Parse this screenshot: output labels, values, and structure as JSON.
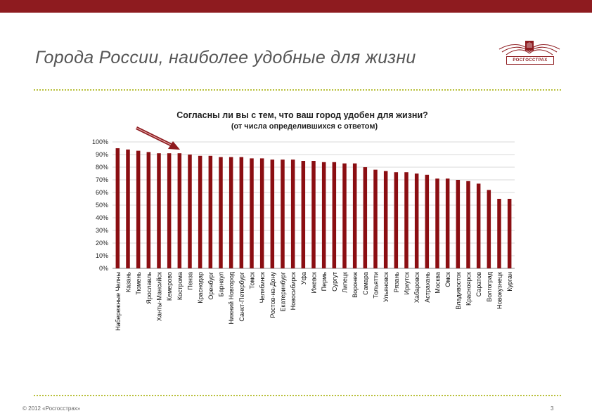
{
  "slide": {
    "title": "Города России, наиболее удобные для жизни",
    "logo_text": "РОСГОССТРАХ",
    "copyright": "© 2012 «Росгосстрах»",
    "page_number": "3",
    "accent_color": "#8e1b1f",
    "dots_color": "#b8c03a"
  },
  "chart_data": {
    "type": "bar",
    "title": "Согласны ли вы с тем, что ваш город удобен для жизни?",
    "subtitle": "(от числа определившихся с ответом)",
    "ylim": [
      0,
      100
    ],
    "ytick_labels": [
      "100%",
      "90%",
      "80%",
      "70%",
      "60%",
      "50%",
      "40%",
      "30%",
      "20%",
      "10%",
      "0%"
    ],
    "grid": true,
    "bar_color": "#8b0e12",
    "highlight_category": "Кострома",
    "categories": [
      "Набережные Челны",
      "Казань",
      "Тюмень",
      "Ярославль",
      "Ханты-Мансийск",
      "Кемерово",
      "Кострома",
      "Пенза",
      "Краснодар",
      "Оренбург",
      "Барнаул",
      "Нижний Новгород",
      "Санкт-Петербург",
      "Томск",
      "Челябинск",
      "Ростов-на-Дону",
      "Екатеринбург",
      "Новосибирск",
      "Уфа",
      "Ижевск",
      "Пермь",
      "Сургут",
      "Липецк",
      "Воронеж",
      "Самара",
      "Тольятти",
      "Ульяновск",
      "Рязань",
      "Иркутск",
      "Хабаровск",
      "Астрахань",
      "Москва",
      "Омск",
      "Владивосток",
      "Красноярск",
      "Саратов",
      "Волгоград",
      "Новокузнецк",
      "Курган"
    ],
    "values": [
      95,
      94,
      93,
      92,
      91,
      91,
      91,
      90,
      89,
      89,
      88,
      88,
      88,
      87,
      87,
      86,
      86,
      86,
      85,
      85,
      84,
      84,
      83,
      83,
      80,
      78,
      77,
      76,
      76,
      75,
      74,
      71,
      71,
      70,
      69,
      67,
      62,
      55,
      55
    ]
  }
}
